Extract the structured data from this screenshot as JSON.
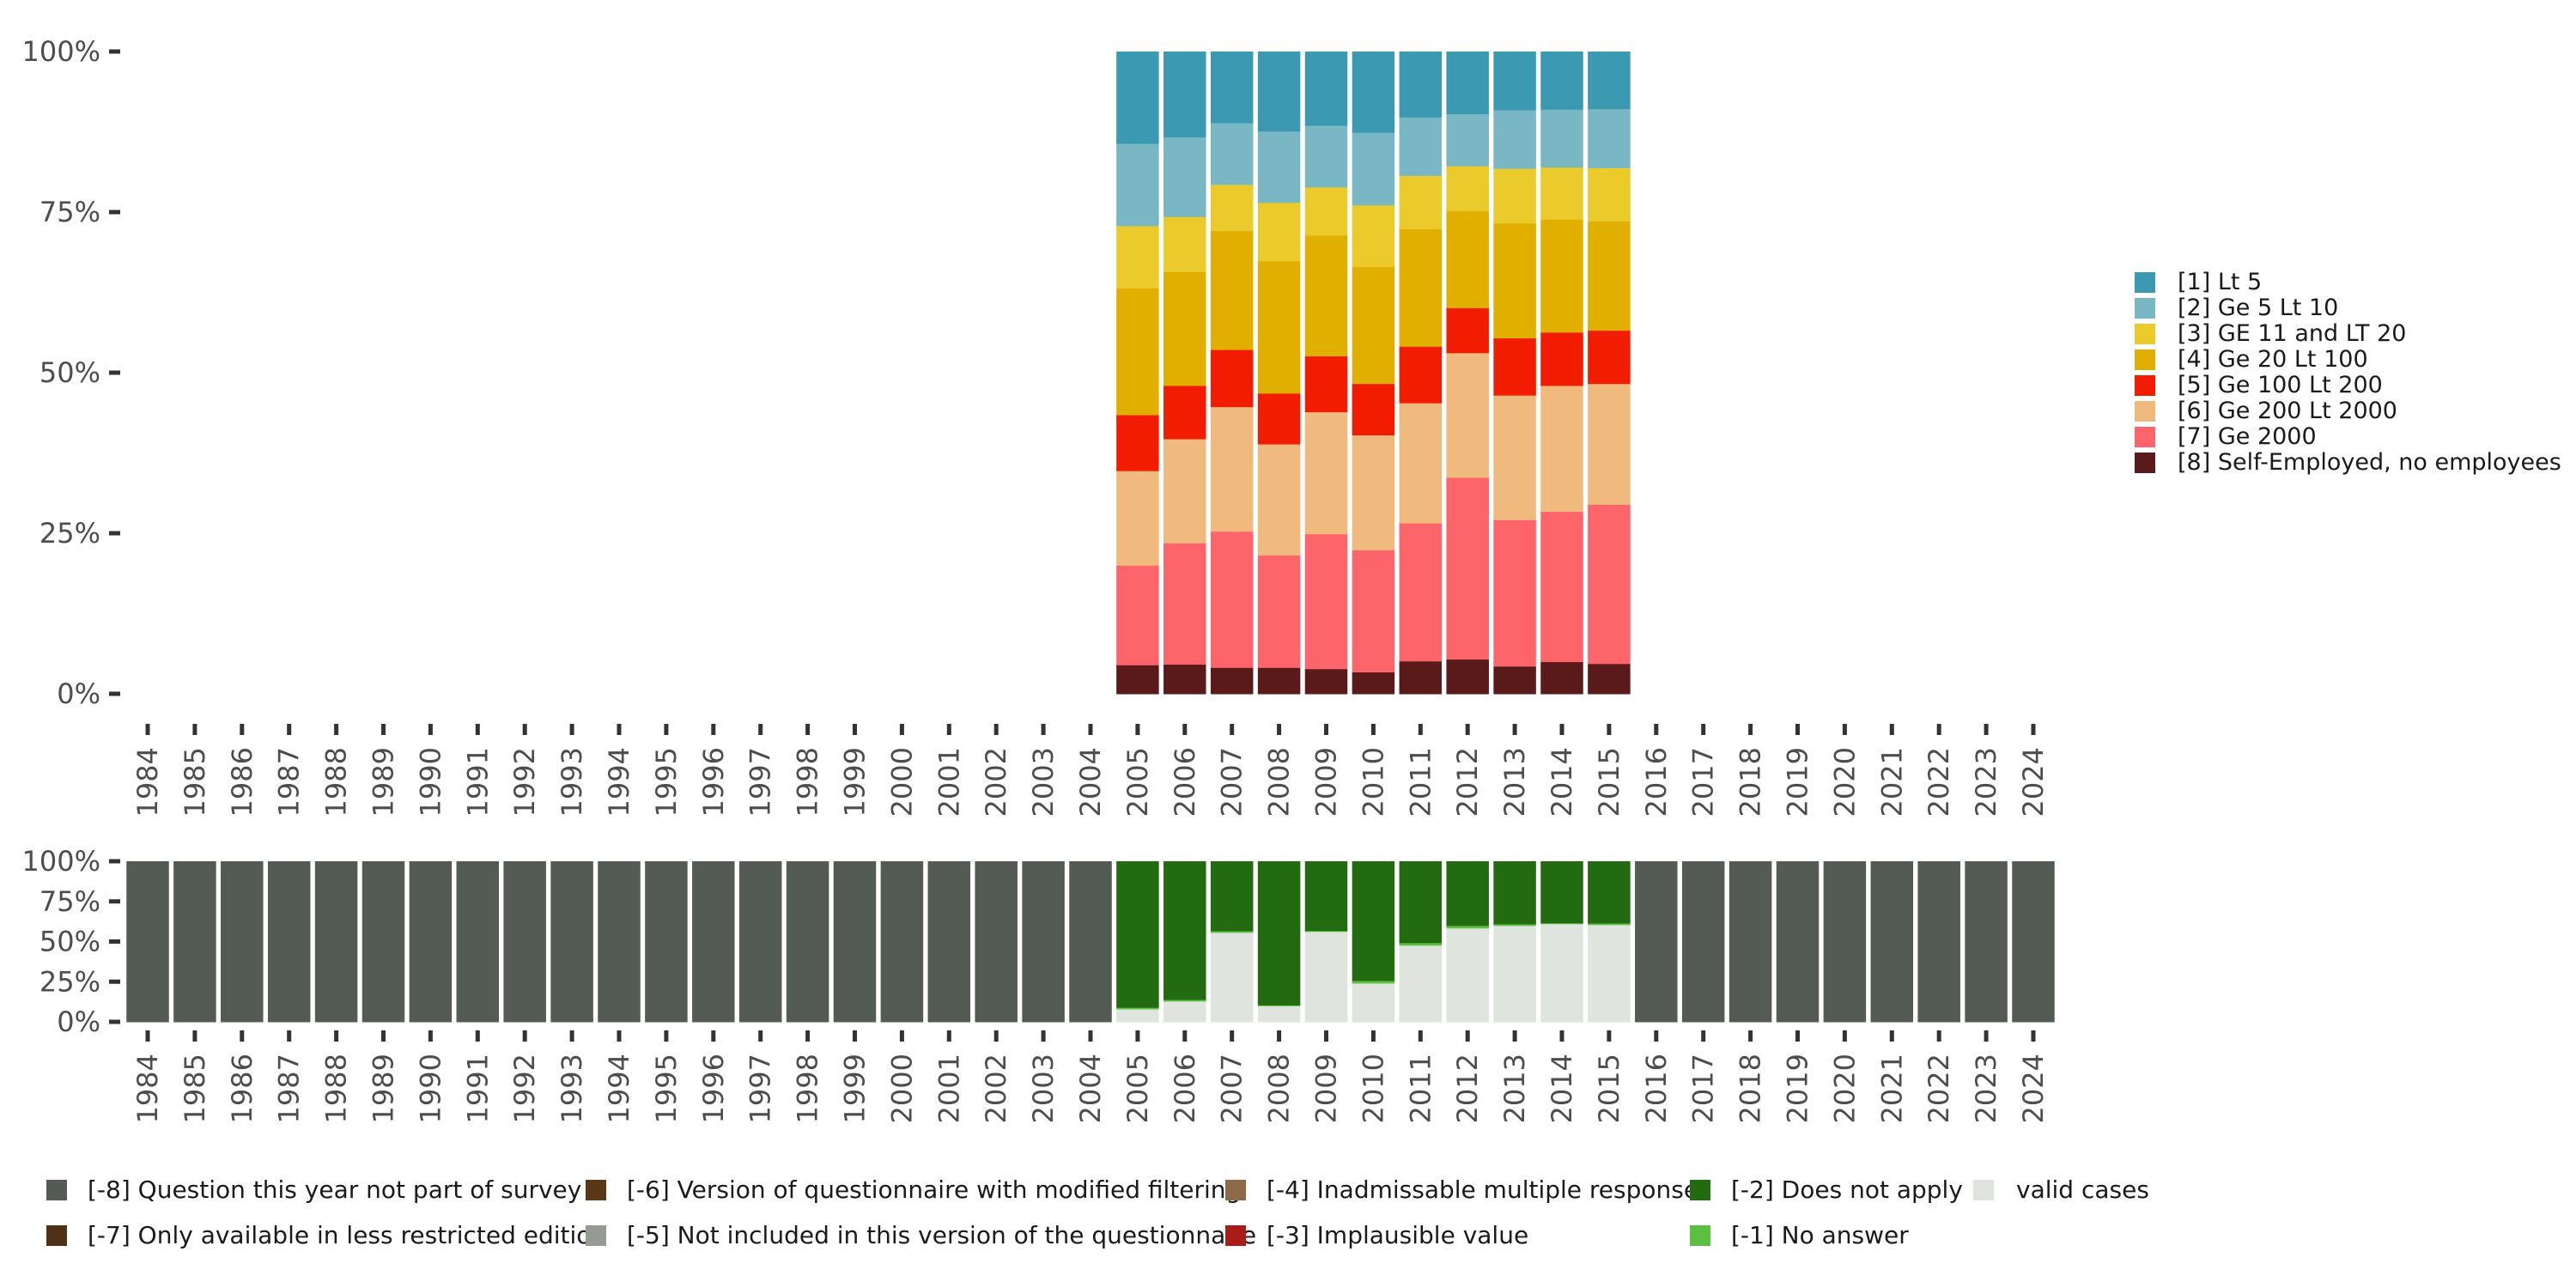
{
  "chart_data": [
    {
      "type": "bar",
      "stacked": true,
      "percent": true,
      "title": "",
      "xlabel": "",
      "ylabel": "",
      "ylim": [
        0,
        100
      ],
      "yticks": [
        "0%",
        "25%",
        "50%",
        "75%",
        "100%"
      ],
      "grid": false,
      "legend_position": "right",
      "categories": [
        "1984",
        "1985",
        "1986",
        "1987",
        "1988",
        "1989",
        "1990",
        "1991",
        "1992",
        "1993",
        "1994",
        "1995",
        "1996",
        "1997",
        "1998",
        "1999",
        "2000",
        "2001",
        "2002",
        "2003",
        "2004",
        "2005",
        "2006",
        "2007",
        "2008",
        "2009",
        "2010",
        "2011",
        "2012",
        "2013",
        "2014",
        "2015",
        "2016",
        "2017",
        "2018",
        "2019",
        "2020",
        "2021",
        "2022",
        "2023",
        "2024"
      ],
      "data_years": [
        "2005",
        "2006",
        "2007",
        "2008",
        "2009",
        "2010",
        "2011",
        "2012",
        "2013",
        "2014",
        "2015"
      ],
      "series": [
        {
          "name": "[8] Self-Employed, no employees",
          "color": "#5a1a1a",
          "values": [
            4.5,
            4.6,
            4.1,
            4.1,
            3.9,
            3.4,
            5.1,
            5.4,
            4.3,
            5.0,
            4.7
          ]
        },
        {
          "name": "[7] Ge 2000",
          "color": "#fe656b",
          "values": [
            15.5,
            18.9,
            21.2,
            17.5,
            21.0,
            19.0,
            21.5,
            28.3,
            22.8,
            23.4,
            24.8
          ]
        },
        {
          "name": "[6] Ge 200 Lt 2000",
          "color": "#f0ba7e",
          "values": [
            14.7,
            16.2,
            19.4,
            17.3,
            19.0,
            17.9,
            18.7,
            19.4,
            19.4,
            19.6,
            18.8
          ]
        },
        {
          "name": "[5] Ge 100 Lt 200",
          "color": "#f21c00",
          "values": [
            8.7,
            8.3,
            8.9,
            7.9,
            8.7,
            8.0,
            8.8,
            7.0,
            8.9,
            8.3,
            8.3
          ]
        },
        {
          "name": "[4] Ge 20 Lt 100",
          "color": "#e0af00",
          "values": [
            19.7,
            17.7,
            18.5,
            20.6,
            18.8,
            18.2,
            18.3,
            15.1,
            17.9,
            17.6,
            17.0
          ]
        },
        {
          "name": "[3] GE 11 and LT 20",
          "color": "#ebcb2b",
          "values": [
            9.7,
            8.6,
            7.2,
            9.1,
            7.5,
            9.6,
            8.3,
            7.0,
            8.5,
            8.1,
            8.3
          ]
        },
        {
          "name": "[2] Ge 5 Lt 10",
          "color": "#79b7c5",
          "values": [
            12.8,
            12.4,
            9.6,
            11.1,
            9.6,
            11.3,
            9.1,
            8.1,
            9.1,
            9.0,
            9.2
          ]
        },
        {
          "name": "[1] Lt 5",
          "color": "#3b9ab2",
          "values": [
            14.3,
            13.3,
            11.1,
            12.4,
            11.5,
            12.6,
            10.2,
            9.7,
            9.1,
            9.0,
            8.9
          ]
        }
      ],
      "legend": [
        "[1] Lt 5",
        "[2] Ge 5 Lt 10",
        "[3] GE 11 and LT 20",
        "[4] Ge 20 Lt 100",
        "[5] Ge 100 Lt 200",
        "[6] Ge 200 Lt 2000",
        "[7] Ge 2000",
        "[8] Self-Employed, no employees"
      ]
    },
    {
      "type": "bar",
      "stacked": true,
      "percent": true,
      "title": "",
      "xlabel": "",
      "ylabel": "",
      "ylim": [
        0,
        100
      ],
      "yticks": [
        "0%",
        "25%",
        "50%",
        "75%",
        "100%"
      ],
      "grid": false,
      "legend_position": "bottom",
      "categories": [
        "1984",
        "1985",
        "1986",
        "1987",
        "1988",
        "1989",
        "1990",
        "1991",
        "1992",
        "1993",
        "1994",
        "1995",
        "1996",
        "1997",
        "1998",
        "1999",
        "2000",
        "2001",
        "2002",
        "2003",
        "2004",
        "2005",
        "2006",
        "2007",
        "2008",
        "2009",
        "2010",
        "2011",
        "2012",
        "2013",
        "2014",
        "2015",
        "2016",
        "2017",
        "2018",
        "2019",
        "2020",
        "2021",
        "2022",
        "2023",
        "2024"
      ],
      "series": [
        {
          "name": "valid cases",
          "color": "#e0e4de",
          "values": [
            0,
            0,
            0,
            0,
            0,
            0,
            0,
            0,
            0,
            0,
            0,
            0,
            0,
            0,
            0,
            0,
            0,
            0,
            0,
            0,
            0,
            8.0,
            12.9,
            55.7,
            10.0,
            56.3,
            24.1,
            47.7,
            58.4,
            60.0,
            61.1,
            60.5,
            0,
            0,
            0,
            0,
            0,
            0,
            0,
            0,
            0
          ]
        },
        {
          "name": "[-1] No answer",
          "color": "#5bbf3f",
          "values": [
            0,
            0,
            0,
            0,
            0,
            0,
            0,
            0,
            0,
            0,
            0,
            0,
            0,
            0,
            0,
            0,
            0,
            0,
            0,
            0,
            0,
            1.0,
            1.0,
            1.0,
            0.5,
            0.5,
            1.6,
            1.6,
            1.6,
            1.0,
            0.5,
            1.0,
            0,
            0,
            0,
            0,
            0,
            0,
            0,
            0,
            0
          ]
        },
        {
          "name": "[-2] Does not apply",
          "color": "#236b11",
          "values": [
            0,
            0,
            0,
            0,
            0,
            0,
            0,
            0,
            0,
            0,
            0,
            0,
            0,
            0,
            0,
            0,
            0,
            0,
            0,
            0,
            0,
            91.0,
            86.1,
            43.3,
            89.5,
            43.2,
            74.3,
            50.7,
            40.0,
            39.0,
            38.4,
            38.5,
            0,
            0,
            0,
            0,
            0,
            0,
            0,
            0,
            0
          ]
        },
        {
          "name": "[-8] Question this year not part of survey",
          "color": "#545b55",
          "values": [
            100,
            100,
            100,
            100,
            100,
            100,
            100,
            100,
            100,
            100,
            100,
            100,
            100,
            100,
            100,
            100,
            100,
            100,
            100,
            100,
            100,
            0,
            0,
            0,
            0,
            0,
            0,
            0,
            0,
            0,
            0,
            0,
            100,
            100,
            100,
            100,
            100,
            100,
            100,
            100,
            100
          ]
        }
      ],
      "legend": [
        {
          "label": "[-8] Question this year not part of survey",
          "color": "#545b55"
        },
        {
          "label": "[-7] Only available in less restricted edition",
          "color": "#4e3117"
        },
        {
          "label": "[-6] Version of questionnaire with modified filtering",
          "color": "#5a3817"
        },
        {
          "label": "[-5] Not included in this version of the questionnaire",
          "color": "#959a92"
        },
        {
          "label": "[-4] Inadmissable multiple response",
          "color": "#8e6b48"
        },
        {
          "label": "[-3] Implausible value",
          "color": "#a91c17"
        },
        {
          "label": "[-2] Does not apply",
          "color": "#236b11"
        },
        {
          "label": "[-1] No answer",
          "color": "#5bbf3f"
        },
        {
          "label": "valid cases",
          "color": "#e0e4de"
        }
      ]
    }
  ]
}
